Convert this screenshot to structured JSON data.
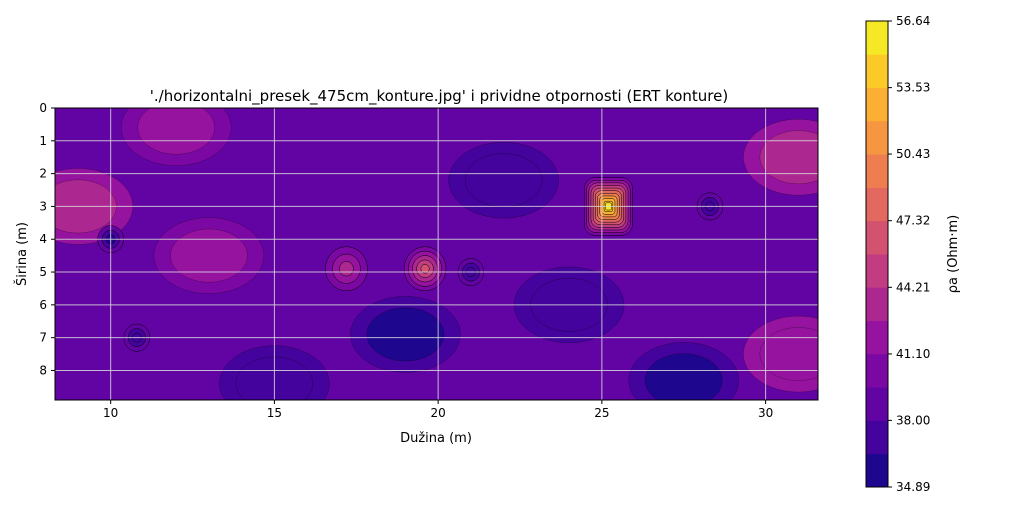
{
  "chart_data": {
    "type": "heatmap",
    "title": "'./horizontalni_presek_475cm_konture.jpg' i prividne otpornosti (ERT konture)",
    "xlabel": "Dužina (m)",
    "ylabel": "Širina (m)",
    "xlim": [
      8.3,
      31.6
    ],
    "ylim": [
      8.9,
      0
    ],
    "x_ticks": [
      "10",
      "15",
      "20",
      "25",
      "30"
    ],
    "x_tick_values": [
      10,
      15,
      20,
      25,
      30
    ],
    "y_ticks": [
      "0",
      "1",
      "2",
      "3",
      "4",
      "5",
      "6",
      "7",
      "8"
    ],
    "y_tick_values": [
      0,
      1,
      2,
      3,
      4,
      5,
      6,
      7,
      8
    ],
    "grid": true,
    "colormap": "plasma",
    "background_level": 39.2,
    "colorbar": {
      "label": "ρa (Ohm·m)",
      "min": 34.89,
      "max": 56.64,
      "ticks": [
        "34.89",
        "38.00",
        "41.10",
        "44.21",
        "47.32",
        "50.43",
        "53.53",
        "56.64"
      ],
      "tick_values": [
        34.89,
        38.0,
        41.1,
        44.21,
        47.32,
        50.43,
        53.53,
        56.64
      ],
      "levels": 14
    },
    "zones": [
      {
        "x": 9.0,
        "y": 3.0,
        "value": 42.5
      },
      {
        "x": 31.0,
        "y": 1.5,
        "value": 42.0
      },
      {
        "x": 31.0,
        "y": 7.5,
        "value": 41.8
      },
      {
        "x": 12.0,
        "y": 0.6,
        "value": 41.0
      },
      {
        "x": 22.0,
        "y": 2.2,
        "value": 37.8
      },
      {
        "x": 19.0,
        "y": 6.9,
        "value": 36.8
      },
      {
        "x": 27.5,
        "y": 8.3,
        "value": 36.5
      },
      {
        "x": 15.0,
        "y": 8.4,
        "value": 37.5
      },
      {
        "x": 13.0,
        "y": 4.5,
        "value": 40.5
      },
      {
        "x": 24.0,
        "y": 6.0,
        "value": 37.6
      }
    ],
    "anomalies": [
      {
        "x": 25.2,
        "y": 3.0,
        "peak": 56.64
      },
      {
        "x": 19.6,
        "y": 4.9,
        "peak": 46.3
      },
      {
        "x": 17.2,
        "y": 4.9,
        "peak": 44.2
      },
      {
        "x": 10.0,
        "y": 4.0,
        "peak": 36.0
      },
      {
        "x": 28.3,
        "y": 3.0,
        "peak": 37.0
      },
      {
        "x": 21.0,
        "y": 5.0,
        "peak": 36.8
      },
      {
        "x": 10.8,
        "y": 7.0,
        "peak": 37.0
      }
    ]
  }
}
